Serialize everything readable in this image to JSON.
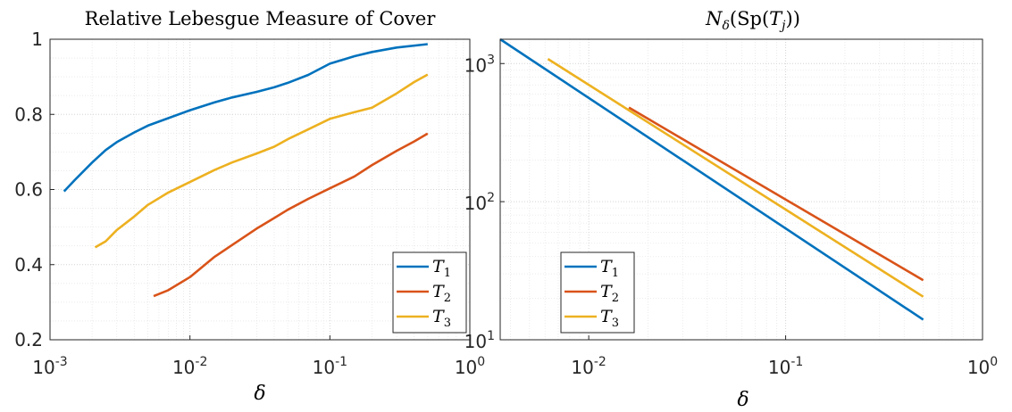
{
  "chart_data": [
    {
      "type": "line",
      "title": "Relative Lebesgue Measure of Cover",
      "xlabel": "δ",
      "ylabel": "",
      "xscale": "log",
      "yscale": "linear",
      "xlim": [
        0.001,
        1
      ],
      "ylim": [
        0.2,
        1
      ],
      "x_ticks": [
        0.001,
        0.01,
        0.1,
        1
      ],
      "x_tick_labels": [
        {
          "base": "10",
          "exp": "-3"
        },
        {
          "base": "10",
          "exp": "-2"
        },
        {
          "base": "10",
          "exp": "-1"
        },
        {
          "base": "10",
          "exp": "0"
        }
      ],
      "y_ticks": [
        0.2,
        0.4,
        0.6,
        0.8,
        1
      ],
      "y_tick_labels": [
        "0.2",
        "0.4",
        "0.6",
        "0.8",
        "1"
      ],
      "grid": true,
      "legend_position": "bottom-right",
      "series": [
        {
          "name": "T",
          "name_sub": "1",
          "color": "#0072BD",
          "x": [
            0.00126,
            0.0015,
            0.002,
            0.0025,
            0.003,
            0.004,
            0.005,
            0.007,
            0.01,
            0.015,
            0.02,
            0.03,
            0.04,
            0.05,
            0.07,
            0.1,
            0.15,
            0.2,
            0.3,
            0.5
          ],
          "y": [
            0.595,
            0.625,
            0.672,
            0.705,
            0.726,
            0.752,
            0.77,
            0.79,
            0.811,
            0.832,
            0.845,
            0.86,
            0.872,
            0.884,
            0.905,
            0.935,
            0.955,
            0.966,
            0.978,
            0.987
          ]
        },
        {
          "name": "T",
          "name_sub": "2",
          "color": "#D95319",
          "x": [
            0.0055,
            0.007,
            0.01,
            0.015,
            0.02,
            0.03,
            0.04,
            0.05,
            0.07,
            0.1,
            0.15,
            0.2,
            0.3,
            0.4,
            0.5
          ],
          "y": [
            0.316,
            0.332,
            0.367,
            0.421,
            0.452,
            0.496,
            0.524,
            0.546,
            0.575,
            0.603,
            0.635,
            0.665,
            0.703,
            0.728,
            0.749
          ]
        },
        {
          "name": "T",
          "name_sub": "3",
          "color": "#EDB120",
          "x": [
            0.0021,
            0.0025,
            0.003,
            0.004,
            0.005,
            0.007,
            0.01,
            0.015,
            0.02,
            0.03,
            0.04,
            0.05,
            0.07,
            0.1,
            0.15,
            0.2,
            0.3,
            0.4,
            0.5
          ],
          "y": [
            0.446,
            0.462,
            0.492,
            0.528,
            0.559,
            0.592,
            0.62,
            0.652,
            0.672,
            0.696,
            0.714,
            0.734,
            0.76,
            0.788,
            0.806,
            0.818,
            0.856,
            0.886,
            0.906
          ]
        }
      ]
    },
    {
      "type": "line",
      "title_parts": {
        "N": "N",
        "sub": "δ",
        "open": "(Sp(",
        "T": "T",
        "Tsub": "j",
        "close": "))"
      },
      "xlabel": "δ",
      "ylabel": "",
      "xscale": "log",
      "yscale": "log",
      "xlim": [
        0.00355,
        1
      ],
      "ylim": [
        10,
        1500
      ],
      "x_ticks": [
        0.01,
        0.1,
        1
      ],
      "x_tick_labels": [
        {
          "base": "10",
          "exp": "-2"
        },
        {
          "base": "10",
          "exp": "-1"
        },
        {
          "base": "10",
          "exp": "0"
        }
      ],
      "y_ticks": [
        10,
        100,
        1000
      ],
      "y_tick_labels": [
        {
          "base": "10",
          "exp": "1"
        },
        {
          "base": "10",
          "exp": "2"
        },
        {
          "base": "10",
          "exp": "3"
        }
      ],
      "grid": true,
      "legend_position": "bottom-left",
      "series": [
        {
          "name": "T",
          "name_sub": "1",
          "color": "#0072BD",
          "x": [
            0.00355,
            0.5
          ],
          "y": [
            1500,
            14
          ]
        },
        {
          "name": "T",
          "name_sub": "2",
          "color": "#D95319",
          "x": [
            0.016,
            0.5
          ],
          "y": [
            480,
            27
          ]
        },
        {
          "name": "T",
          "name_sub": "3",
          "color": "#EDB120",
          "x": [
            0.0062,
            0.5
          ],
          "y": [
            1080,
            20.5
          ]
        }
      ]
    }
  ]
}
